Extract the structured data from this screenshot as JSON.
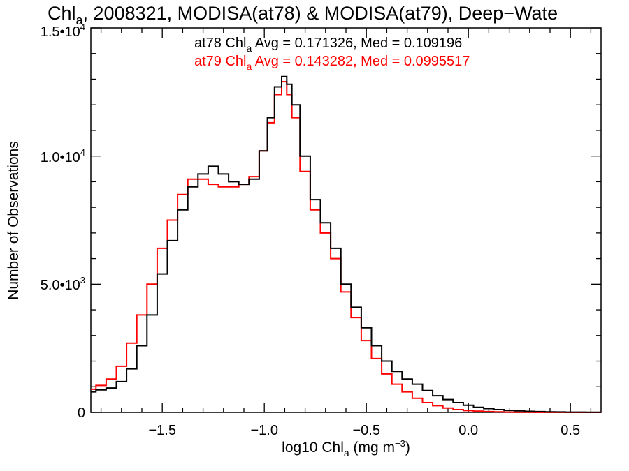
{
  "chart_data": {
    "type": "line",
    "title": "Chl_a, 2008321, MODISA(at78) & MODISA(at79), Deep-Wate",
    "xlabel": "log10 Chl_a (mg m^-3)",
    "ylabel": "Number of Observations",
    "xlim": [
      -1.85,
      0.65
    ],
    "ylim": [
      0,
      15000
    ],
    "x_ticks": [
      "-1.5",
      "-1.0",
      "-0.5",
      "0.0",
      "0.5"
    ],
    "y_ticks": [
      "0",
      "5.0•10³",
      "1.0•10⁴",
      "1.5•10⁴"
    ],
    "annotations": [
      {
        "text": "at78 Chl_a Avg = 0.171326, Med = 0.109196",
        "color": "#000000"
      },
      {
        "text": "at79 Chl_a Avg = 0.143282, Med = 0.0995517",
        "color": "#ff0000"
      }
    ],
    "series": [
      {
        "color": "#000000",
        "x": [
          -1.85,
          -1.8,
          -1.75,
          -1.7,
          -1.65,
          -1.6,
          -1.55,
          -1.5,
          -1.45,
          -1.4,
          -1.35,
          -1.3,
          -1.25,
          -1.2,
          -1.15,
          -1.1,
          -1.05,
          -1.0,
          -0.97,
          -0.93,
          -0.9,
          -0.88,
          -0.85,
          -0.8,
          -0.75,
          -0.7,
          -0.65,
          -0.6,
          -0.55,
          -0.5,
          -0.45,
          -0.4,
          -0.35,
          -0.3,
          -0.25,
          -0.2,
          -0.15,
          -0.1,
          -0.05,
          0.0,
          0.05,
          0.1,
          0.15,
          0.2,
          0.25,
          0.3,
          0.35,
          0.4,
          0.45,
          0.5,
          0.55,
          0.6,
          0.65
        ],
        "y": [
          800,
          880,
          950,
          1200,
          1700,
          2600,
          3800,
          5400,
          6700,
          7900,
          8800,
          9300,
          9600,
          9300,
          9000,
          8900,
          9100,
          10200,
          11500,
          12700,
          13100,
          12800,
          12000,
          10000,
          8300,
          7400,
          6400,
          5000,
          4100,
          3300,
          2600,
          2000,
          1600,
          1300,
          1100,
          850,
          650,
          500,
          380,
          280,
          200,
          150,
          110,
          80,
          60,
          40,
          30,
          20,
          15,
          10,
          10,
          5,
          5
        ]
      },
      {
        "color": "#ff0000",
        "x": [
          -1.85,
          -1.8,
          -1.75,
          -1.7,
          -1.65,
          -1.6,
          -1.55,
          -1.5,
          -1.45,
          -1.4,
          -1.35,
          -1.3,
          -1.25,
          -1.2,
          -1.15,
          -1.1,
          -1.05,
          -1.0,
          -0.97,
          -0.93,
          -0.9,
          -0.88,
          -0.85,
          -0.8,
          -0.75,
          -0.7,
          -0.65,
          -0.6,
          -0.55,
          -0.5,
          -0.45,
          -0.4,
          -0.35,
          -0.3,
          -0.25,
          -0.2,
          -0.15,
          -0.1,
          -0.05,
          0.0,
          0.05,
          0.1,
          0.15,
          0.2,
          0.25,
          0.3,
          0.35,
          0.4,
          0.45,
          0.5,
          0.55,
          0.6,
          0.65
        ],
        "y": [
          900,
          1050,
          1300,
          1800,
          2700,
          3800,
          5000,
          6400,
          7500,
          8500,
          9100,
          9100,
          8900,
          8800,
          8800,
          8900,
          9200,
          10200,
          11300,
          12400,
          12900,
          12400,
          11500,
          9400,
          7900,
          7000,
          6000,
          4700,
          3700,
          2800,
          2100,
          1500,
          1100,
          800,
          550,
          380,
          260,
          170,
          110,
          70,
          45,
          30,
          20,
          12,
          8,
          6,
          4,
          3,
          2,
          1,
          1,
          1,
          1
        ]
      }
    ]
  }
}
